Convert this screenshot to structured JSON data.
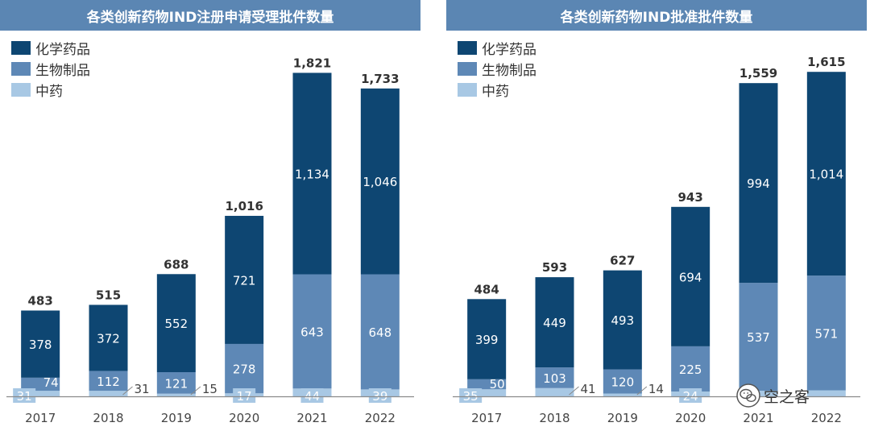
{
  "colors": {
    "title_bg": "#5b86b3",
    "chem": "#0e4672",
    "bio": "#5e88b6",
    "tcm": "#a8c8e4",
    "axis": "#8a8a8a",
    "total_label": "#333333"
  },
  "watermark": {
    "text": "空之客",
    "icon": "wechat-icon"
  },
  "chart_data": [
    {
      "type": "bar",
      "stacked": true,
      "title": "各类创新药物IND注册申请受理批件数量",
      "legend_position": "top-left",
      "categories": [
        "2017",
        "2018",
        "2019",
        "2020",
        "2021",
        "2022"
      ],
      "series": [
        {
          "name": "化学药品",
          "values": [
            378,
            372,
            552,
            721,
            1134,
            1046
          ]
        },
        {
          "name": "生物制品",
          "values": [
            74,
            112,
            121,
            278,
            643,
            648
          ]
        },
        {
          "name": "中药",
          "values": [
            31,
            31,
            15,
            17,
            44,
            39
          ]
        }
      ],
      "totals": [
        483,
        515,
        688,
        1016,
        1821,
        1733
      ],
      "value_labels": {
        "化学药品": [
          "378",
          "372",
          "552",
          "721",
          "1,134",
          "1,046"
        ],
        "生物制品": [
          "74",
          "112",
          "121",
          "278",
          "643",
          "648"
        ],
        "中药": [
          "31",
          "31",
          "15",
          "17",
          "44",
          "39"
        ]
      },
      "total_labels": [
        "483",
        "515",
        "688",
        "1,016",
        "1,821",
        "1,733"
      ],
      "ylim": [
        0,
        1900
      ],
      "grid": false
    },
    {
      "type": "bar",
      "stacked": true,
      "title": "各类创新药物IND批准批件数量",
      "legend_position": "top-left",
      "categories": [
        "2017",
        "2018",
        "2019",
        "2020",
        "2021",
        "2022"
      ],
      "series": [
        {
          "name": "化学药品",
          "values": [
            399,
            449,
            493,
            694,
            994,
            1014
          ]
        },
        {
          "name": "生物制品",
          "values": [
            50,
            103,
            120,
            225,
            537,
            571
          ]
        },
        {
          "name": "中药",
          "values": [
            35,
            41,
            14,
            24,
            28,
            30
          ]
        }
      ],
      "totals": [
        484,
        593,
        627,
        943,
        1559,
        1615
      ],
      "value_labels": {
        "化学药品": [
          "399",
          "449",
          "493",
          "694",
          "994",
          "1,014"
        ],
        "生物制品": [
          "50",
          "103",
          "120",
          "225",
          "537",
          "571"
        ],
        "中药": [
          "35",
          "41",
          "14",
          "24",
          "",
          ""
        ]
      },
      "total_labels": [
        "484",
        "593",
        "627",
        "943",
        "1,559",
        "1,615"
      ],
      "ylim": [
        0,
        1680
      ],
      "grid": false
    }
  ]
}
